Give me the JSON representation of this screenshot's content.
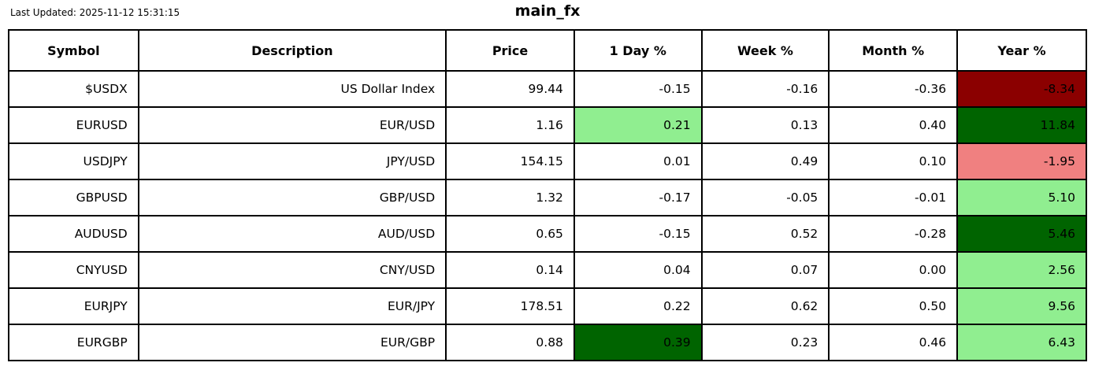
{
  "title": "main_fx",
  "last_updated": "Last Updated: 2025-11-12 15:31:15",
  "palette": {
    "strong_gain": "#006400",
    "gain": "#90ee90",
    "loss": "#f08080",
    "strong_loss": "#8b0000",
    "border": "#000000",
    "background": "#ffffff",
    "text": "#000000"
  },
  "chart_data": {
    "type": "table",
    "title": "main_fx",
    "columns": [
      "Symbol",
      "Description",
      "Price",
      "1 Day %",
      "Week %",
      "Month %",
      "Year %"
    ],
    "column_keys": [
      "symbol",
      "description",
      "price",
      "day-pct",
      "week-pct",
      "month-pct",
      "year-pct"
    ],
    "column_widths_pct": [
      12.04,
      28.54,
      11.9,
      11.82,
      11.82,
      11.9,
      11.98
    ],
    "rows": [
      {
        "cells": [
          {
            "text": "$USDX"
          },
          {
            "text": "US Dollar Index"
          },
          {
            "text": "99.44"
          },
          {
            "text": "-0.15"
          },
          {
            "text": "-0.16"
          },
          {
            "text": "-0.36"
          },
          {
            "text": "-8.34",
            "bg": "#8b0000"
          }
        ]
      },
      {
        "cells": [
          {
            "text": "EURUSD"
          },
          {
            "text": "EUR/USD"
          },
          {
            "text": "1.16"
          },
          {
            "text": "0.21",
            "bg": "#90ee90"
          },
          {
            "text": "0.13"
          },
          {
            "text": "0.40"
          },
          {
            "text": "11.84",
            "bg": "#006400"
          }
        ]
      },
      {
        "cells": [
          {
            "text": "USDJPY"
          },
          {
            "text": "JPY/USD"
          },
          {
            "text": "154.15"
          },
          {
            "text": "0.01"
          },
          {
            "text": "0.49"
          },
          {
            "text": "0.10"
          },
          {
            "text": "-1.95",
            "bg": "#f08080"
          }
        ]
      },
      {
        "cells": [
          {
            "text": "GBPUSD"
          },
          {
            "text": "GBP/USD"
          },
          {
            "text": "1.32"
          },
          {
            "text": "-0.17"
          },
          {
            "text": "-0.05"
          },
          {
            "text": "-0.01"
          },
          {
            "text": "5.10",
            "bg": "#90ee90"
          }
        ]
      },
      {
        "cells": [
          {
            "text": "AUDUSD"
          },
          {
            "text": "AUD/USD"
          },
          {
            "text": "0.65"
          },
          {
            "text": "-0.15"
          },
          {
            "text": "0.52"
          },
          {
            "text": "-0.28"
          },
          {
            "text": "5.46",
            "bg": "#006400"
          }
        ]
      },
      {
        "cells": [
          {
            "text": "CNYUSD"
          },
          {
            "text": "CNY/USD"
          },
          {
            "text": "0.14"
          },
          {
            "text": "0.04"
          },
          {
            "text": "0.07"
          },
          {
            "text": "0.00"
          },
          {
            "text": "2.56",
            "bg": "#90ee90"
          }
        ]
      },
      {
        "cells": [
          {
            "text": "EURJPY"
          },
          {
            "text": "EUR/JPY"
          },
          {
            "text": "178.51"
          },
          {
            "text": "0.22"
          },
          {
            "text": "0.62"
          },
          {
            "text": "0.50"
          },
          {
            "text": "9.56",
            "bg": "#90ee90"
          }
        ]
      },
      {
        "cells": [
          {
            "text": "EURGBP"
          },
          {
            "text": "EUR/GBP"
          },
          {
            "text": "0.88"
          },
          {
            "text": "0.39",
            "bg": "#006400"
          },
          {
            "text": "0.23"
          },
          {
            "text": "0.46"
          },
          {
            "text": "6.43",
            "bg": "#90ee90"
          }
        ]
      }
    ]
  }
}
